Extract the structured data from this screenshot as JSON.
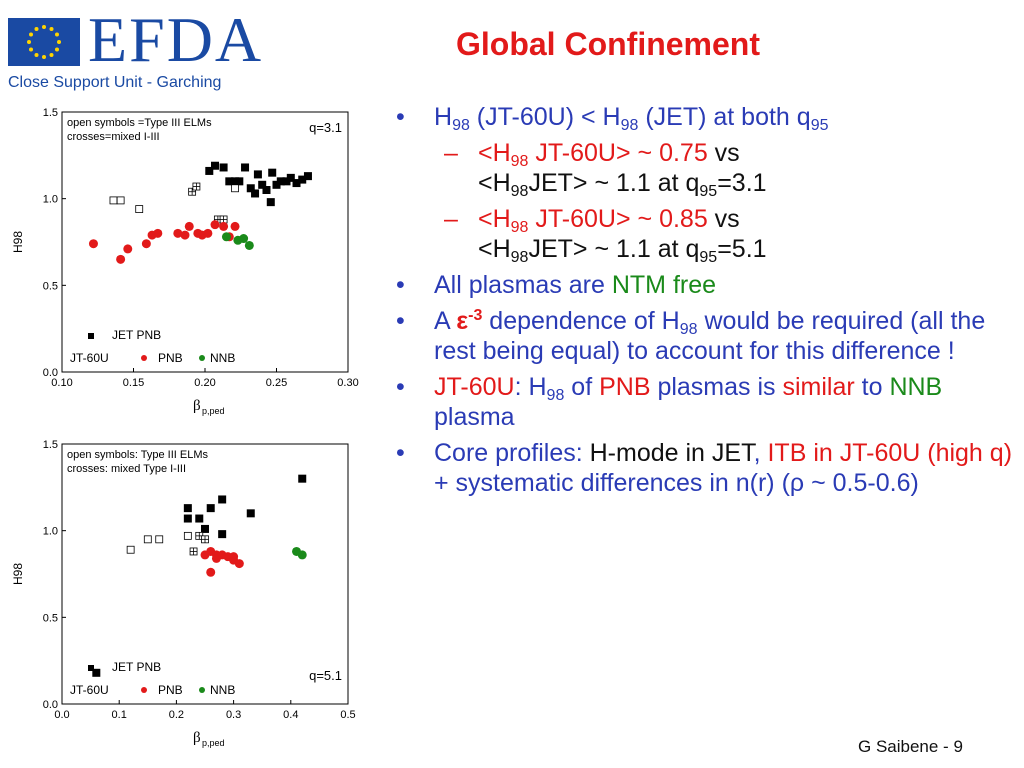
{
  "header": {
    "logo_text": "EFDA",
    "logo_subtitle": "Close Support Unit - Garching",
    "title": "Global Confinement"
  },
  "colors": {
    "title_red": "#e21a1a",
    "text_blue": "#2a3bb5",
    "green": "#1a8a1a",
    "logo_blue": "#1a4aa3"
  },
  "bullets": {
    "b1": {
      "t1": "H",
      "s1": "98",
      "t2": " (JT-60U) < H",
      "s2": "98",
      "t3": " (JET) at both q",
      "s3": "95"
    },
    "sub1": {
      "t1": "<H",
      "s1": "98",
      "t2": " JT-60U> ~ 0.75",
      "t3": " vs",
      "t4": "<H",
      "s4": "98",
      "t5": "JET> ~ 1.1 at q",
      "s5": "95",
      "t6": "=3.1"
    },
    "sub2": {
      "t1": "<H",
      "s1": "98",
      "t2": " JT-60U> ~ 0.85",
      "t3": " vs",
      "t4": "<H",
      "s4": "98",
      "t5": "JET> ~ 1.1 at q",
      "s5": "95",
      "t6": "=5.1"
    },
    "b2": {
      "t1": "All plasmas are ",
      "t2": "NTM free"
    },
    "b3": {
      "t1": "A ",
      "eps": "ε",
      "sup": "-3",
      "t2": " dependence of H",
      "s2": "98",
      "t3": " would be required (all the rest being equal) to account for this difference !"
    },
    "b4": {
      "t1": "JT-60U",
      "t2": ": H",
      "s2": "98",
      "t3": " of ",
      "t4": "PNB",
      "t5": " plasmas is ",
      "t6": "similar",
      "t7": " to ",
      "t8": "NNB",
      "t9": " plasma"
    },
    "b5": {
      "t1": "Core profiles: ",
      "t2": "H-mode in JET",
      "t3": ", ",
      "t4": "ITB in JT-60U (high q)",
      "t5": " + systematic differences in n(r)  (",
      "rho": "ρ",
      "t6": " ~ 0.5-0.6)"
    }
  },
  "footer": {
    "text": "G Saibene  - 9"
  },
  "chart_data": [
    {
      "type": "scatter",
      "xlabel": "β",
      "xlabel_sub": "p,ped",
      "ylabel": "H98",
      "xlim": [
        0.1,
        0.3
      ],
      "ylim": [
        0.0,
        1.5
      ],
      "xticks": [
        "0.10",
        "0.15",
        "0.20",
        "0.25",
        "0.30"
      ],
      "yticks": [
        "0.0",
        "0.5",
        "1.0",
        "1.5"
      ],
      "annotation_lines": [
        "open symbols =Type III ELMs",
        "crosses=mixed I-III"
      ],
      "q_label": "q=3.1",
      "legend": {
        "row1_label": "JET PNB",
        "row2_prefix": "JT-60U",
        "row2_pnb": "PNB",
        "row2_nnb": "NNB"
      },
      "series": [
        {
          "name": "JET PNB",
          "marker": "square-filled",
          "color": "#000000",
          "points": [
            [
              0.203,
              1.16
            ],
            [
              0.207,
              1.19
            ],
            [
              0.213,
              1.18
            ],
            [
              0.217,
              1.1
            ],
            [
              0.221,
              1.1
            ],
            [
              0.224,
              1.1
            ],
            [
              0.228,
              1.18
            ],
            [
              0.232,
              1.06
            ],
            [
              0.235,
              1.03
            ],
            [
              0.237,
              1.14
            ],
            [
              0.24,
              1.08
            ],
            [
              0.243,
              1.05
            ],
            [
              0.247,
              1.15
            ],
            [
              0.25,
              1.08
            ],
            [
              0.253,
              1.1
            ],
            [
              0.257,
              1.1
            ],
            [
              0.26,
              1.12
            ],
            [
              0.264,
              1.09
            ],
            [
              0.268,
              1.11
            ],
            [
              0.272,
              1.13
            ],
            [
              0.246,
              0.98
            ]
          ]
        },
        {
          "name": "JET Type III",
          "marker": "square-open",
          "color": "#000000",
          "points": [
            [
              0.136,
              0.99
            ],
            [
              0.141,
              0.99
            ],
            [
              0.154,
              0.94
            ],
            [
              0.221,
              1.06
            ]
          ]
        },
        {
          "name": "JET mixed I-III",
          "marker": "square-cross",
          "color": "#000000",
          "points": [
            [
              0.191,
              1.04
            ],
            [
              0.194,
              1.07
            ],
            [
              0.209,
              0.88
            ],
            [
              0.213,
              0.88
            ]
          ]
        },
        {
          "name": "JT-60U PNB",
          "marker": "circle",
          "color": "#e21a1a",
          "points": [
            [
              0.122,
              0.74
            ],
            [
              0.141,
              0.65
            ],
            [
              0.146,
              0.71
            ],
            [
              0.159,
              0.74
            ],
            [
              0.163,
              0.79
            ],
            [
              0.167,
              0.8
            ],
            [
              0.181,
              0.8
            ],
            [
              0.186,
              0.79
            ],
            [
              0.189,
              0.84
            ],
            [
              0.195,
              0.8
            ],
            [
              0.198,
              0.79
            ],
            [
              0.202,
              0.8
            ],
            [
              0.207,
              0.85
            ],
            [
              0.213,
              0.84
            ],
            [
              0.217,
              0.78
            ],
            [
              0.221,
              0.84
            ]
          ]
        },
        {
          "name": "JT-60U NNB",
          "marker": "circle",
          "color": "#1a8a1a",
          "points": [
            [
              0.215,
              0.78
            ],
            [
              0.223,
              0.76
            ],
            [
              0.227,
              0.77
            ],
            [
              0.231,
              0.73
            ]
          ]
        }
      ]
    },
    {
      "type": "scatter",
      "xlabel": "β",
      "xlabel_sub": "p,ped",
      "ylabel": "H98",
      "xlim": [
        0.0,
        0.5
      ],
      "ylim": [
        0.0,
        1.5
      ],
      "xticks": [
        "0.0",
        "0.1",
        "0.2",
        "0.3",
        "0.4",
        "0.5"
      ],
      "yticks": [
        "0.0",
        "0.5",
        "1.0",
        "1.5"
      ],
      "annotation_lines": [
        "open symbols: Type III ELMs",
        "crosses: mixed Type I-III"
      ],
      "q_label": "q=5.1",
      "legend": {
        "row1_label": "JET PNB",
        "row2_prefix": "JT-60U",
        "row2_pnb": "PNB",
        "row2_nnb": "NNB"
      },
      "series": [
        {
          "name": "JET PNB",
          "marker": "square-filled",
          "color": "#000000",
          "points": [
            [
              0.22,
              1.13
            ],
            [
              0.22,
              1.07
            ],
            [
              0.24,
              1.07
            ],
            [
              0.25,
              1.01
            ],
            [
              0.26,
              1.13
            ],
            [
              0.28,
              1.18
            ],
            [
              0.28,
              0.98
            ],
            [
              0.33,
              1.1
            ],
            [
              0.42,
              1.3
            ],
            [
              0.06,
              0.18
            ]
          ]
        },
        {
          "name": "JET Type III",
          "marker": "square-open",
          "color": "#000000",
          "points": [
            [
              0.12,
              0.89
            ],
            [
              0.15,
              0.95
            ],
            [
              0.17,
              0.95
            ],
            [
              0.22,
              0.97
            ]
          ]
        },
        {
          "name": "JET mixed I-III",
          "marker": "square-cross",
          "color": "#000000",
          "points": [
            [
              0.23,
              0.88
            ],
            [
              0.24,
              0.97
            ],
            [
              0.25,
              0.95
            ]
          ]
        },
        {
          "name": "JT-60U PNB",
          "marker": "circle",
          "color": "#e21a1a",
          "points": [
            [
              0.25,
              0.86
            ],
            [
              0.26,
              0.88
            ],
            [
              0.27,
              0.86
            ],
            [
              0.27,
              0.84
            ],
            [
              0.28,
              0.86
            ],
            [
              0.29,
              0.85
            ],
            [
              0.3,
              0.85
            ],
            [
              0.3,
              0.83
            ],
            [
              0.31,
              0.81
            ],
            [
              0.26,
              0.76
            ]
          ]
        },
        {
          "name": "JT-60U NNB",
          "marker": "circle",
          "color": "#1a8a1a",
          "points": [
            [
              0.41,
              0.88
            ],
            [
              0.42,
              0.86
            ]
          ]
        }
      ]
    }
  ]
}
